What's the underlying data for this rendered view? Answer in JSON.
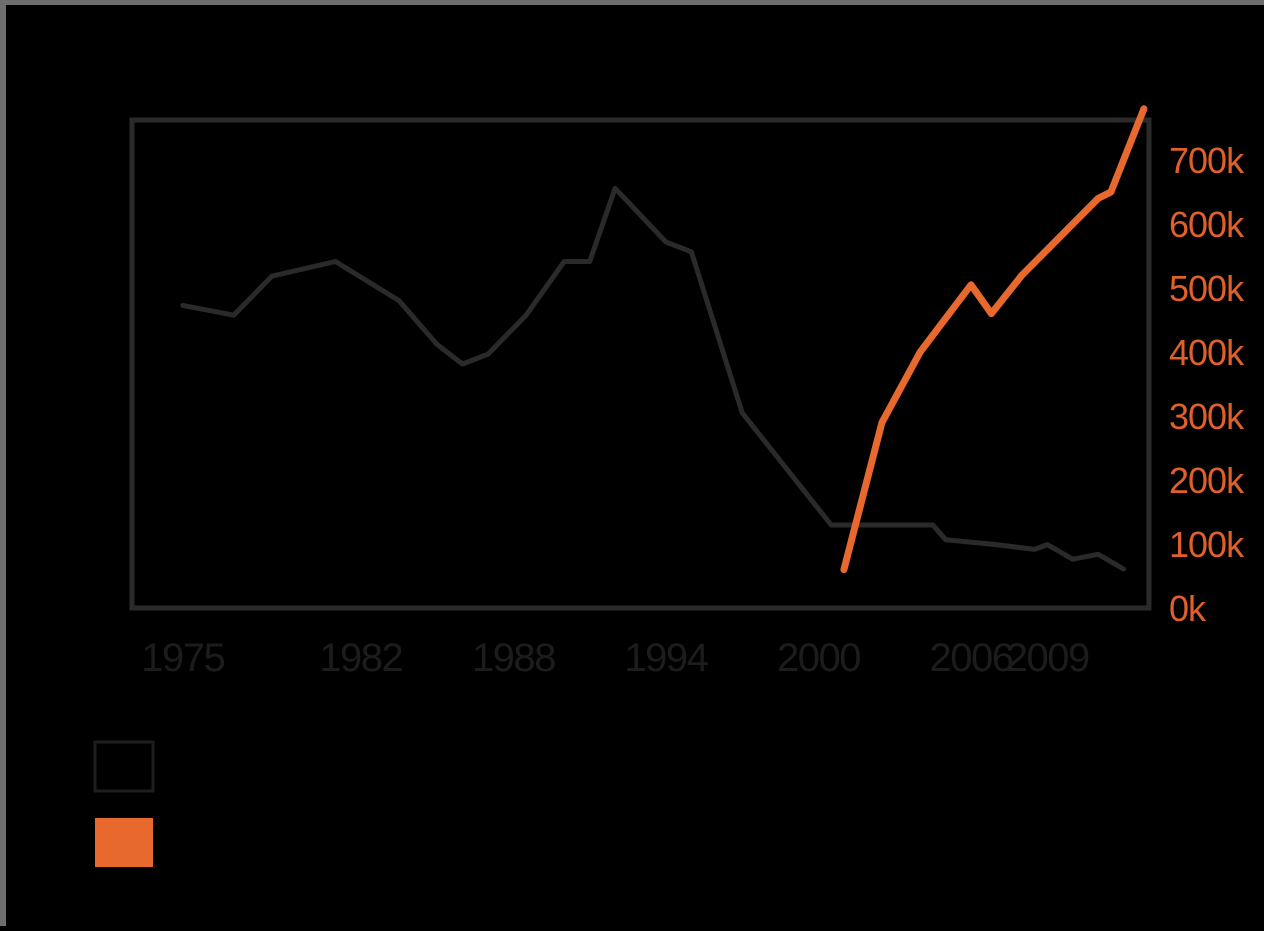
{
  "chart_data": {
    "type": "line",
    "x_ticks": [
      "1975",
      "1982",
      "1988",
      "1994",
      "2000",
      "2006",
      "2009"
    ],
    "y2_ticks": [
      "0k",
      "100k",
      "200k",
      "300k",
      "400k",
      "500k",
      "600k",
      "700k"
    ],
    "xlim": [
      1973,
      2013
    ],
    "y2lim": [
      0,
      700000
    ],
    "grid": false,
    "legend_position": "bottom-left",
    "series": [
      {
        "color": "#2a2a2a",
        "axis": "left",
        "points": [
          [
            1975,
            0.62
          ],
          [
            1977,
            0.6
          ],
          [
            1978.5,
            0.68
          ],
          [
            1981,
            0.71
          ],
          [
            1983.5,
            0.63
          ],
          [
            1985,
            0.54
          ],
          [
            1986,
            0.5
          ],
          [
            1987,
            0.52
          ],
          [
            1988.5,
            0.6
          ],
          [
            1990,
            0.71
          ],
          [
            1991,
            0.71
          ],
          [
            1992,
            0.86
          ],
          [
            1994,
            0.75
          ],
          [
            1995,
            0.73
          ],
          [
            1997,
            0.4
          ],
          [
            2000.5,
            0.17
          ],
          [
            2003,
            0.17
          ],
          [
            2004.5,
            0.17
          ],
          [
            2005,
            0.14
          ],
          [
            2007,
            0.13
          ],
          [
            2008.5,
            0.12
          ],
          [
            2009,
            0.13
          ],
          [
            2010,
            0.1
          ],
          [
            2011,
            0.11
          ],
          [
            2012,
            0.08
          ]
        ]
      },
      {
        "color": "#e8692e",
        "axis": "right",
        "points": [
          [
            2001,
            60000
          ],
          [
            2002.5,
            290000
          ],
          [
            2004,
            400000
          ],
          [
            2006,
            505000
          ],
          [
            2006.8,
            460000
          ],
          [
            2008,
            520000
          ],
          [
            2009,
            560000
          ],
          [
            2010,
            600000
          ],
          [
            2011,
            640000
          ],
          [
            2011.5,
            650000
          ],
          [
            2012.8,
            780000
          ]
        ]
      }
    ]
  }
}
